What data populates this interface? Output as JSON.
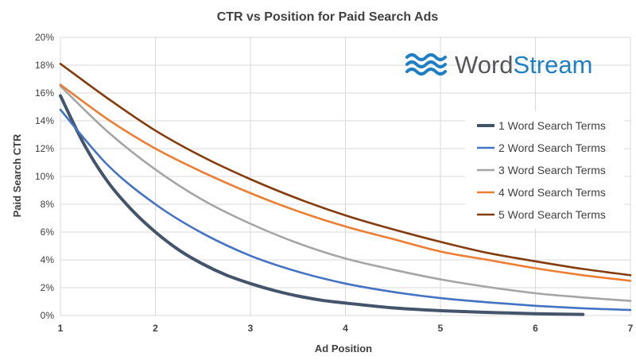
{
  "brand": {
    "logo_text_1": "Word",
    "logo_text_2": "Stream",
    "color_word": "#555759",
    "color_stream": "#1f7fc4",
    "color_waves": "#1f7fc4"
  },
  "chart_data": {
    "type": "line",
    "title": "CTR vs Position for Paid Search Ads",
    "xlabel": "Ad Position",
    "ylabel": "Paid Search CTR",
    "xlim": [
      1,
      7
    ],
    "ylim": [
      0,
      20
    ],
    "x_ticks": [
      "1",
      "2",
      "3",
      "4",
      "5",
      "6",
      "7"
    ],
    "y_ticks": [
      "0%",
      "2%",
      "4%",
      "6%",
      "8%",
      "10%",
      "12%",
      "14%",
      "16%",
      "18%",
      "20%"
    ],
    "y_unit": "%",
    "grid": true,
    "legend_position": "right",
    "series": [
      {
        "name": "1 Word Search Terms",
        "color": "#44546a",
        "x": [
          1.0,
          1.25,
          1.5,
          1.75,
          2.0,
          2.25,
          2.5,
          2.75,
          3.0,
          3.25,
          3.5,
          3.75,
          4.0,
          4.5,
          5.0,
          5.5,
          6.0,
          6.5
        ],
        "values": [
          15.8,
          12.3,
          9.6,
          7.6,
          6.0,
          4.7,
          3.7,
          2.9,
          2.3,
          1.8,
          1.4,
          1.1,
          0.9,
          0.55,
          0.35,
          0.22,
          0.13,
          0.08
        ]
      },
      {
        "name": "2 Word Search Terms",
        "color": "#4472c4",
        "x": [
          1.0,
          1.5,
          2.0,
          2.5,
          3.0,
          3.5,
          4.0,
          4.5,
          5.0,
          5.5,
          6.0,
          6.5,
          7.0
        ],
        "values": [
          14.8,
          10.8,
          8.0,
          5.9,
          4.3,
          3.15,
          2.3,
          1.7,
          1.25,
          0.95,
          0.7,
          0.52,
          0.4
        ]
      },
      {
        "name": "3 Word Search Terms",
        "color": "#a5a5a5",
        "x": [
          1.0,
          1.5,
          2.0,
          2.5,
          3.0,
          3.5,
          4.0,
          4.5,
          5.0,
          5.5,
          6.0,
          6.5,
          7.0
        ],
        "values": [
          16.5,
          13.2,
          10.5,
          8.3,
          6.6,
          5.2,
          4.1,
          3.3,
          2.6,
          2.05,
          1.6,
          1.3,
          1.05
        ]
      },
      {
        "name": "4 Word Search Terms",
        "color": "#ed7d31",
        "x": [
          1.0,
          1.5,
          2.0,
          2.5,
          3.0,
          3.5,
          4.0,
          4.5,
          5.0,
          5.5,
          6.0,
          6.5,
          7.0
        ],
        "values": [
          16.6,
          14.1,
          12.0,
          10.3,
          8.8,
          7.5,
          6.4,
          5.5,
          4.6,
          4.0,
          3.4,
          2.9,
          2.5
        ]
      },
      {
        "name": "5 Word Search Terms",
        "color": "#843c0c",
        "x": [
          1.0,
          1.5,
          2.0,
          2.5,
          3.0,
          3.5,
          4.0,
          4.5,
          5.0,
          5.5,
          6.0,
          6.5,
          7.0
        ],
        "values": [
          18.1,
          15.6,
          13.3,
          11.4,
          9.8,
          8.4,
          7.2,
          6.2,
          5.3,
          4.5,
          3.9,
          3.35,
          2.9
        ]
      }
    ]
  }
}
